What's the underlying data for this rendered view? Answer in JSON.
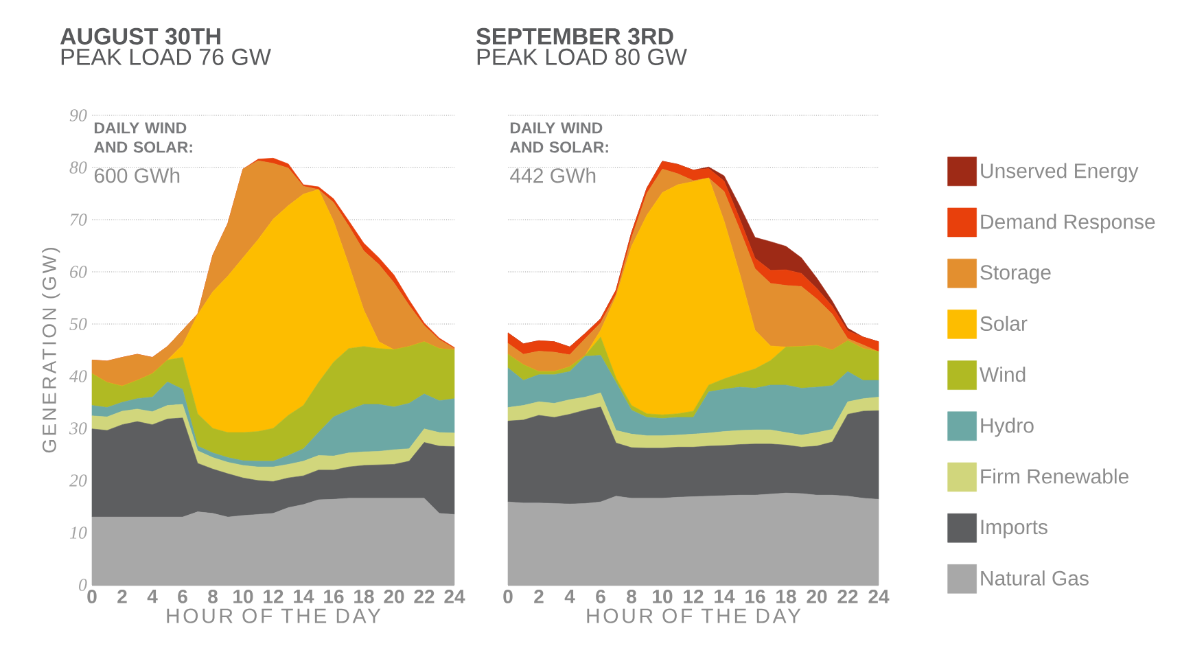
{
  "chart_data": [
    {
      "type": "area",
      "stacked": true,
      "title": "AUGUST 30TH",
      "subtitle": "PEAK LOAD 76 GW",
      "xlabel": "HOUR OF THE DAY",
      "ylabel": "GENERATION (GW)",
      "annotations": [
        "DAILY WIND AND SOLAR:",
        "600 GWh"
      ],
      "grid": "y",
      "xlim": [
        0,
        24
      ],
      "ylim": [
        0,
        90
      ],
      "xticks": [
        0,
        2,
        4,
        6,
        8,
        10,
        12,
        14,
        16,
        18,
        20,
        22,
        24
      ],
      "yticks": [
        0,
        10,
        20,
        30,
        40,
        50,
        60,
        70,
        80,
        90
      ],
      "x": [
        0,
        1,
        2,
        3,
        4,
        5,
        6,
        7,
        8,
        9,
        10,
        11,
        12,
        13,
        14,
        15,
        16,
        17,
        18,
        19,
        20,
        21,
        22,
        23,
        24
      ],
      "series": [
        {
          "color": "#a8a8a8",
          "values": [
            13,
            13,
            13,
            13,
            13,
            13,
            13,
            14,
            13.7,
            13,
            13.3,
            13.5,
            13.7,
            14.8,
            15.4,
            16.3,
            16.4,
            16.6,
            16.6,
            16.6,
            16.6,
            16.6,
            16.6,
            13.7,
            13.5
          ]
        },
        {
          "color": "#5d5e60",
          "values": [
            16.9,
            16.6,
            17.7,
            18.3,
            17.7,
            18.8,
            19,
            9.3,
            8.5,
            8.3,
            7.2,
            6.5,
            6.1,
            5.7,
            5.5,
            5.7,
            5.6,
            6,
            6.3,
            6.4,
            6.5,
            7.1,
            10.7,
            12.9,
            13
          ]
        },
        {
          "color": "#d1d67c",
          "values": [
            2.5,
            2.6,
            2.6,
            2.4,
            2.5,
            2.6,
            2.6,
            2.4,
            2.2,
            2.2,
            2.4,
            2.6,
            2.8,
            2.6,
            2.8,
            2.8,
            2.7,
            2.7,
            2.6,
            2.6,
            2.8,
            2.4,
            2.6,
            2.6,
            2.6
          ]
        },
        {
          "color": "#6ca8a5",
          "values": [
            2,
            1.8,
            1.7,
            2,
            2.8,
            4.5,
            2.9,
            0.9,
            0.9,
            0.9,
            0.9,
            1.1,
            1.1,
            1.7,
            2.4,
            4.4,
            7.5,
            8.2,
            9.1,
            9,
            8.2,
            8.7,
            6.7,
            6.1,
            6.6
          ]
        },
        {
          "color": "#b0ba23",
          "values": [
            6.1,
            4.8,
            3.1,
            3.5,
            4.5,
            4.2,
            6.1,
            6.2,
            4.7,
            4.8,
            5.4,
            5.7,
            6.3,
            7.7,
            8.3,
            9.6,
            10.5,
            11.8,
            11.1,
            10.7,
            11,
            10.9,
            10,
            10,
            9.3
          ]
        },
        {
          "color": "#fdbd00",
          "values": [
            0,
            0,
            0,
            0,
            0,
            0,
            2.4,
            19,
            26.2,
            30,
            33.5,
            36.8,
            40.1,
            40.2,
            40.5,
            37,
            27,
            16.1,
            7,
            1.3,
            0,
            0,
            0,
            0,
            0
          ]
        },
        {
          "color": "#e38f2f",
          "values": [
            2.6,
            4.1,
            5.5,
            5,
            3.1,
            2.6,
            2.8,
            0.1,
            7,
            10.1,
            17,
            15.1,
            10.7,
            7.2,
            1.5,
            0,
            3.6,
            7.4,
            11.3,
            14.8,
            12.8,
            7.9,
            3.1,
            1.7,
            0.3
          ]
        },
        {
          "color": "#e8400c",
          "values": [
            0,
            0,
            0,
            0,
            0,
            0,
            0,
            0,
            0,
            0,
            0,
            0.3,
            1,
            0.8,
            0.3,
            0.5,
            0.7,
            1,
            1.5,
            1.3,
            1.5,
            1,
            0.5,
            0.3,
            0.2
          ]
        }
      ]
    },
    {
      "type": "area",
      "stacked": true,
      "title": "SEPTEMBER 3RD",
      "subtitle": "PEAK LOAD 80 GW",
      "xlabel": "HOUR OF THE DAY",
      "annotations": [
        "DAILY WIND AND SOLAR:",
        "442 GWh"
      ],
      "grid": "y",
      "legend": "right",
      "tick_labels": "x",
      "xlim": [
        0,
        24
      ],
      "ylim": [
        0,
        90
      ],
      "xticks": [
        0,
        2,
        4,
        6,
        8,
        10,
        12,
        14,
        16,
        18,
        20,
        22,
        24
      ],
      "yticks": [
        0,
        10,
        20,
        30,
        40,
        50,
        60,
        70,
        80,
        90
      ],
      "x": [
        0,
        1,
        2,
        3,
        4,
        5,
        6,
        7,
        8,
        9,
        10,
        11,
        12,
        13,
        14,
        15,
        16,
        17,
        18,
        19,
        20,
        21,
        22,
        23,
        24
      ],
      "series": [
        {
          "name": "Natural Gas",
          "color": "#a8a8a8",
          "values": [
            15.9,
            15.7,
            15.7,
            15.6,
            15.5,
            15.6,
            15.9,
            17,
            16.6,
            16.6,
            16.6,
            16.8,
            16.9,
            17,
            17.1,
            17.2,
            17.2,
            17.4,
            17.6,
            17.5,
            17.2,
            17.2,
            17,
            16.6,
            16.4
          ]
        },
        {
          "name": "Imports",
          "color": "#5d5e60",
          "values": [
            15.5,
            15.9,
            16.8,
            16.5,
            17.2,
            17.9,
            18.2,
            10.2,
            9.7,
            9.6,
            9.6,
            9.6,
            9.5,
            9.6,
            9.6,
            9.7,
            9.8,
            9.6,
            9.2,
            8.9,
            9.4,
            10.2,
            15.7,
            16.7,
            17
          ]
        },
        {
          "name": "Firm Renewable",
          "color": "#d1d67c",
          "values": [
            2.6,
            2.8,
            2.6,
            2.7,
            2.8,
            2.5,
            2.7,
            2.4,
            2.6,
            2.4,
            2.4,
            2.3,
            2.5,
            2.5,
            2.7,
            2.7,
            2.7,
            2.7,
            2.4,
            2.3,
            2.6,
            2.4,
            2.4,
            2.4,
            2.6
          ]
        },
        {
          "name": "Hydro",
          "color": "#6ca8a5",
          "values": [
            7.6,
            4.8,
            5.2,
            5.5,
            5.4,
            7.8,
            7.2,
            9.2,
            4.6,
            3.5,
            3.3,
            3.4,
            3.2,
            7.9,
            8.1,
            8.3,
            8.0,
            8.6,
            9.1,
            9,
            8.7,
            8.4,
            5.8,
            3.5,
            3.2
          ]
        },
        {
          "name": "Wind",
          "color": "#b0ba23",
          "values": [
            2.6,
            3,
            0.6,
            0.6,
            0.9,
            0.2,
            3.5,
            0.8,
            0.9,
            0.7,
            0.7,
            0.7,
            1.2,
            1.3,
            2,
            2.6,
            3.7,
            4.7,
            7.3,
            8,
            8,
            6.8,
            5.9,
            6.1,
            5.5
          ]
        },
        {
          "name": "Solar",
          "color": "#fdbd00",
          "values": [
            0,
            0,
            0,
            0,
            0,
            0,
            1.3,
            15.7,
            30.5,
            38.1,
            42.6,
            43.9,
            44,
            39.7,
            30.2,
            19.2,
            7.4,
            2.8,
            0,
            0,
            0,
            0,
            0,
            0,
            0
          ]
        },
        {
          "name": "Storage",
          "color": "#e38f2f",
          "values": [
            2.1,
            2,
            3.9,
            3.7,
            2.3,
            3.2,
            1.4,
            0.4,
            1.6,
            4.2,
            4.5,
            2.1,
            0.2,
            0,
            5.7,
            8.5,
            11.8,
            12,
            11.8,
            11.5,
            8.9,
            6.9,
            0.4,
            0.7,
            0
          ]
        },
        {
          "name": "Demand Response",
          "color": "#e8400c",
          "values": [
            2,
            2,
            2,
            2,
            1.5,
            1,
            0.8,
            0.8,
            1,
            1,
            1.5,
            1.8,
            2,
            1.8,
            2,
            2,
            2,
            2.5,
            3,
            2.5,
            2,
            1.5,
            1.5,
            1.5,
            1.9
          ]
        },
        {
          "name": "Unserved Energy",
          "color": "#9e2a16",
          "values": [
            0,
            0,
            0,
            0,
            0,
            0,
            0,
            0,
            0,
            0,
            0,
            0,
            0,
            0.3,
            1,
            2.5,
            4,
            5.5,
            4.5,
            3,
            2,
            1,
            0.5,
            0,
            0
          ]
        }
      ]
    }
  ]
}
